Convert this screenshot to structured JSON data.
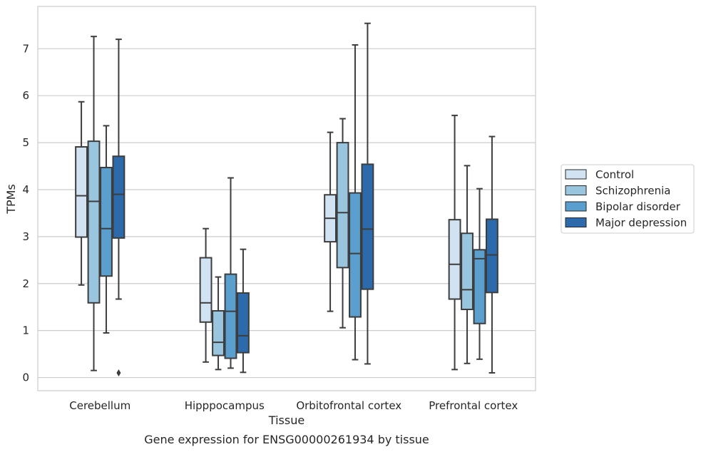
{
  "chart_data": {
    "type": "box",
    "title": "",
    "caption": "Gene expression for ENSG00000261934 by tissue",
    "xlabel": "Tissue",
    "ylabel": "TPMs",
    "ylim": [
      -0.28,
      7.9
    ],
    "yticks": [
      0,
      1,
      2,
      3,
      4,
      5,
      6,
      7
    ],
    "grid": "horizontal",
    "legend_position": "right",
    "categories": [
      "Cerebellum",
      "Hipppocampus",
      "Orbitofrontal cortex",
      "Prefrontal cortex"
    ],
    "series": [
      {
        "name": "Control",
        "color": "#d1e2f2",
        "boxes": [
          {
            "whislo": 1.97,
            "q1": 2.99,
            "med": 3.87,
            "q3": 4.91,
            "whishi": 5.87,
            "fliers": []
          },
          {
            "whislo": 0.33,
            "q1": 1.18,
            "med": 1.59,
            "q3": 2.55,
            "whishi": 3.17,
            "fliers": []
          },
          {
            "whislo": 1.41,
            "q1": 2.89,
            "med": 3.39,
            "q3": 3.89,
            "whishi": 5.22,
            "fliers": []
          },
          {
            "whislo": 0.17,
            "q1": 1.67,
            "med": 2.41,
            "q3": 3.36,
            "whishi": 5.58,
            "fliers": []
          }
        ]
      },
      {
        "name": "Schizophrenia",
        "color": "#9ac5df",
        "boxes": [
          {
            "whislo": 0.15,
            "q1": 1.59,
            "med": 3.75,
            "q3": 5.03,
            "whishi": 7.26,
            "fliers": []
          },
          {
            "whislo": 0.17,
            "q1": 0.47,
            "med": 0.75,
            "q3": 1.42,
            "whishi": 2.14,
            "fliers": []
          },
          {
            "whislo": 1.06,
            "q1": 2.34,
            "med": 3.51,
            "q3": 5.0,
            "whishi": 5.51,
            "fliers": []
          },
          {
            "whislo": 0.3,
            "q1": 1.45,
            "med": 1.87,
            "q3": 3.07,
            "whishi": 4.51,
            "fliers": []
          }
        ]
      },
      {
        "name": "Bipolar disorder",
        "color": "#5a9fcd",
        "boxes": [
          {
            "whislo": 0.95,
            "q1": 2.16,
            "med": 3.17,
            "q3": 4.47,
            "whishi": 5.36,
            "fliers": []
          },
          {
            "whislo": 0.2,
            "q1": 0.41,
            "med": 1.41,
            "q3": 2.2,
            "whishi": 4.25,
            "fliers": []
          },
          {
            "whislo": 0.38,
            "q1": 1.29,
            "med": 2.64,
            "q3": 3.93,
            "whishi": 7.08,
            "fliers": []
          },
          {
            "whislo": 0.39,
            "q1": 1.15,
            "med": 2.53,
            "q3": 2.72,
            "whishi": 4.02,
            "fliers": []
          }
        ]
      },
      {
        "name": "Major depression",
        "color": "#2c6aab",
        "boxes": [
          {
            "whislo": 1.67,
            "q1": 2.97,
            "med": 3.9,
            "q3": 4.71,
            "whishi": 7.2,
            "fliers": [
              0.1
            ]
          },
          {
            "whislo": 0.11,
            "q1": 0.53,
            "med": 0.89,
            "q3": 1.8,
            "whishi": 2.73,
            "fliers": []
          },
          {
            "whislo": 0.29,
            "q1": 1.88,
            "med": 3.16,
            "q3": 4.54,
            "whishi": 7.54,
            "fliers": []
          },
          {
            "whislo": 0.1,
            "q1": 1.81,
            "med": 2.61,
            "q3": 3.37,
            "whishi": 5.13,
            "fliers": []
          }
        ]
      }
    ]
  },
  "colors": {
    "grid": "#cccccc",
    "frame": "#cccccc",
    "box_edge": "#3d3d3d",
    "text": "#262626"
  }
}
